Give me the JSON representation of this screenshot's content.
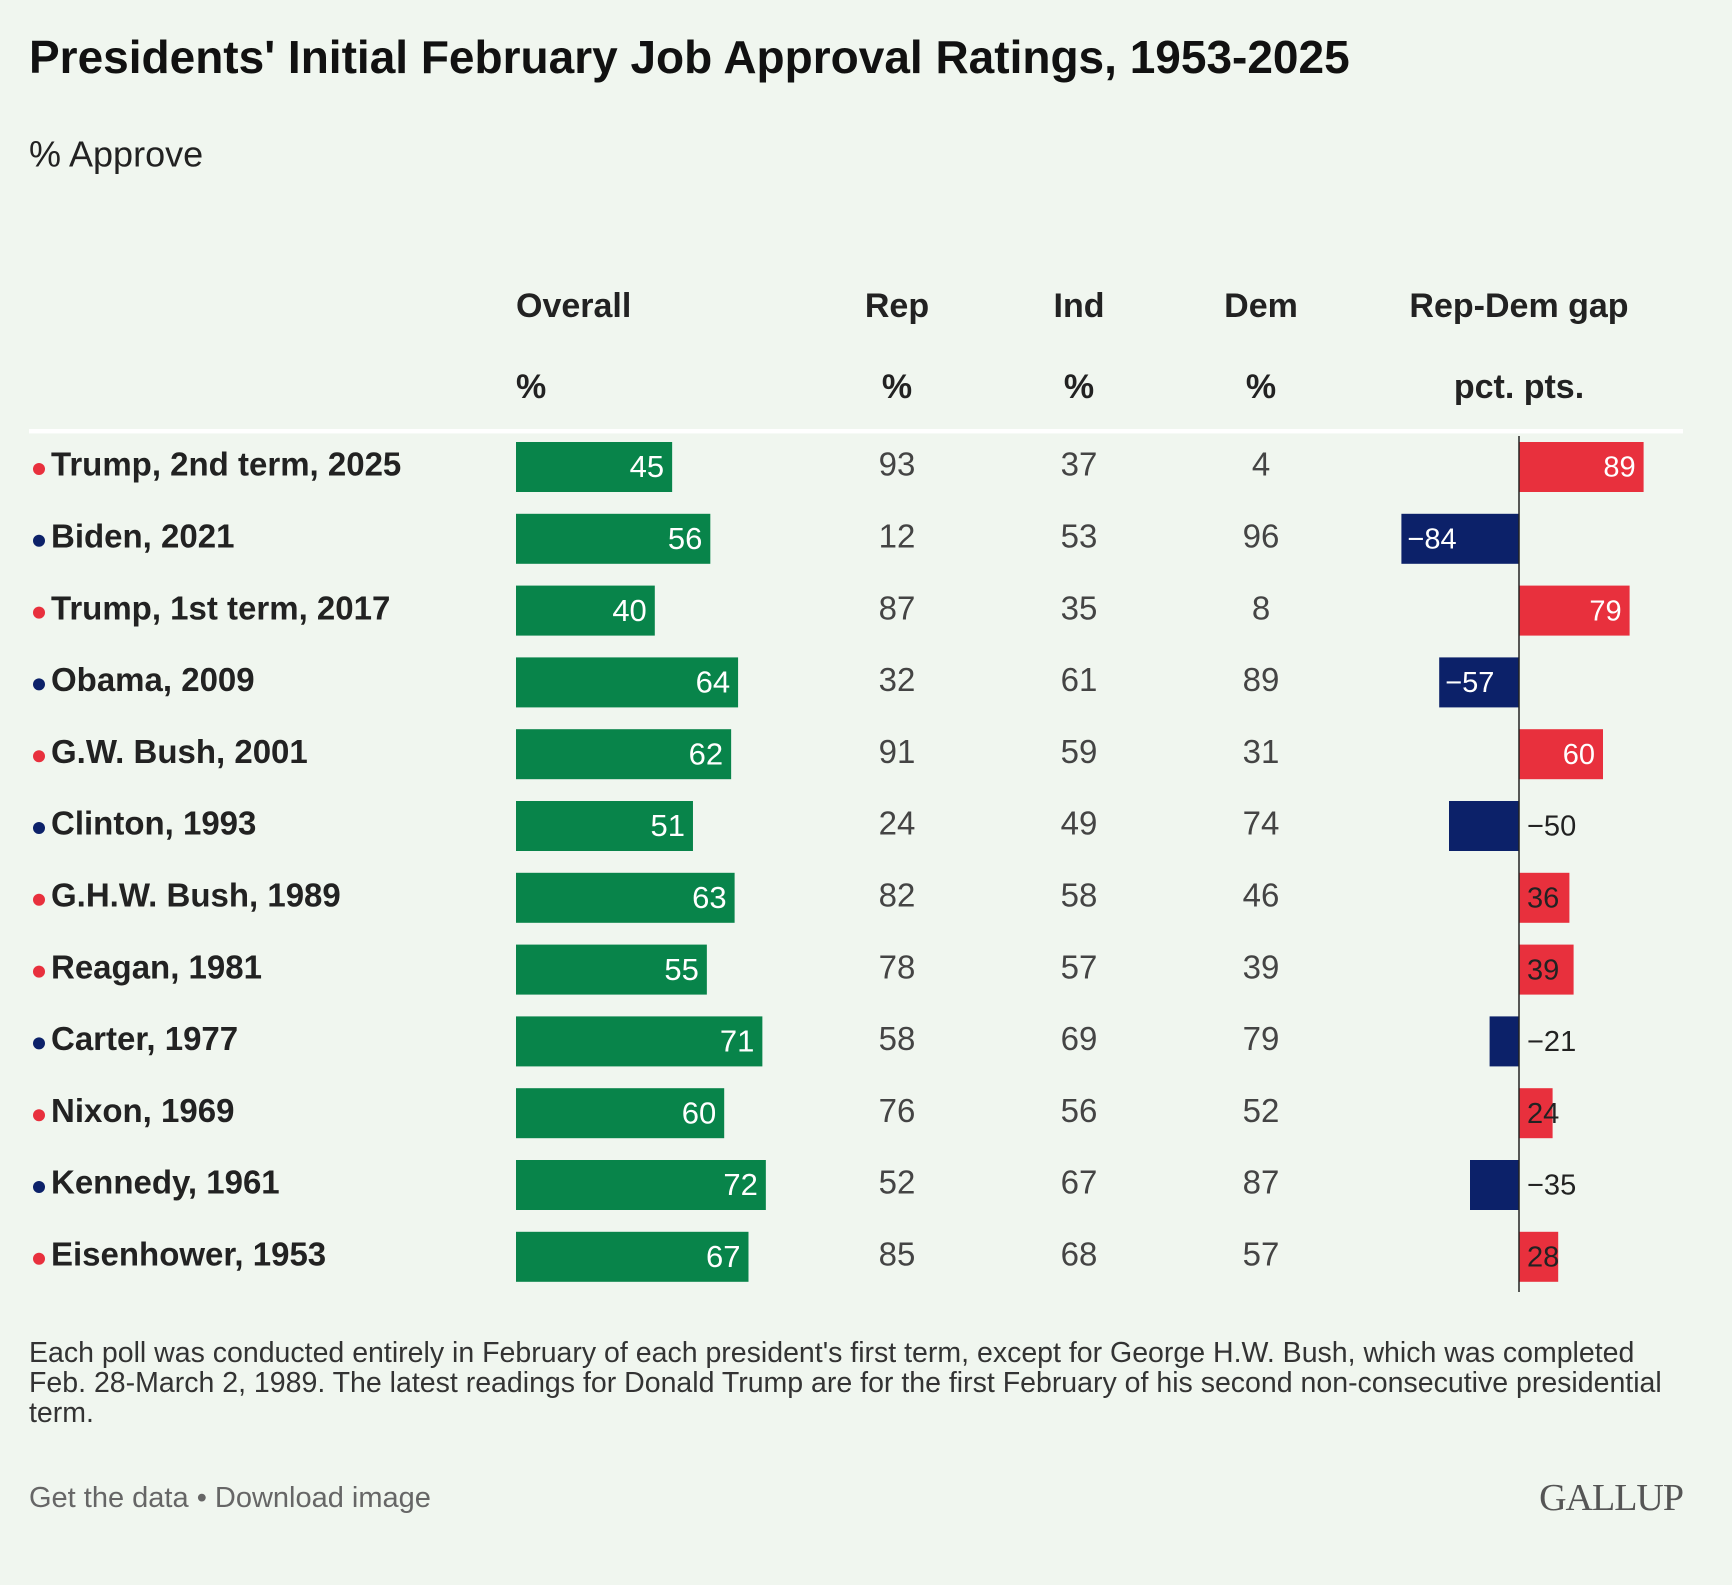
{
  "title": "Presidents' Initial February Job Approval Ratings, 1953-2025",
  "subtitle": "% Approve",
  "table": {
    "columns": [
      {
        "name": "Overall",
        "unit": "%"
      },
      {
        "name": "Rep",
        "unit": "%"
      },
      {
        "name": "Ind",
        "unit": "%"
      },
      {
        "name": "Dem",
        "unit": "%"
      },
      {
        "name": "Rep-Dem gap",
        "unit": "pct. pts."
      }
    ],
    "rows": [
      {
        "label": "Trump, 2nd term, 2025",
        "dot_color": "#e8303d",
        "overall": 45,
        "rep": 93,
        "ind": 37,
        "dem": 4,
        "gap": 89
      },
      {
        "label": "Biden, 2021",
        "dot_color": "#0c2169",
        "overall": 56,
        "rep": 12,
        "ind": 53,
        "dem": 96,
        "gap": -84,
        "gap_label": "−84"
      },
      {
        "label": "Trump, 1st term, 2017",
        "dot_color": "#e8303d",
        "overall": 40,
        "rep": 87,
        "ind": 35,
        "dem": 8,
        "gap": 79
      },
      {
        "label": "Obama, 2009",
        "dot_color": "#0c2169",
        "overall": 64,
        "rep": 32,
        "ind": 61,
        "dem": 89,
        "gap": -57,
        "gap_label": "−57"
      },
      {
        "label": "G.W. Bush, 2001",
        "dot_color": "#e8303d",
        "overall": 62,
        "rep": 91,
        "ind": 59,
        "dem": 31,
        "gap": 60
      },
      {
        "label": "Clinton, 1993",
        "dot_color": "#0c2169",
        "overall": 51,
        "rep": 24,
        "ind": 49,
        "dem": 74,
        "gap": -50,
        "gap_label": "−50"
      },
      {
        "label": "G.H.W. Bush, 1989",
        "dot_color": "#e8303d",
        "overall": 63,
        "rep": 82,
        "ind": 58,
        "dem": 46,
        "gap": 36
      },
      {
        "label": "Reagan, 1981",
        "dot_color": "#e8303d",
        "overall": 55,
        "rep": 78,
        "ind": 57,
        "dem": 39,
        "gap": 39
      },
      {
        "label": "Carter, 1977",
        "dot_color": "#0c2169",
        "overall": 71,
        "rep": 58,
        "ind": 69,
        "dem": 79,
        "gap": -21,
        "gap_label": "−21"
      },
      {
        "label": "Nixon, 1969",
        "dot_color": "#e8303d",
        "overall": 60,
        "rep": 76,
        "ind": 56,
        "dem": 52,
        "gap": 24
      },
      {
        "label": "Kennedy, 1961",
        "dot_color": "#0c2169",
        "overall": 72,
        "rep": 52,
        "ind": 67,
        "dem": 87,
        "gap": -35,
        "gap_label": "−35"
      },
      {
        "label": "Eisenhower, 1953",
        "dot_color": "#e8303d",
        "overall": 67,
        "rep": 85,
        "ind": 68,
        "dem": 57,
        "gap": 28
      }
    ]
  },
  "colors": {
    "overall": "#08844a",
    "positive": "#e8303d",
    "negative": "#0c2169"
  },
  "note": "Each poll was conducted entirely in February of each president's first term, except for George H.W. Bush, which was completed Feb. 28-March 2, 1989. The latest readings for Donald Trump are for the first February of his second non-consecutive presidential term.",
  "links": [
    "Get the data",
    "Download image"
  ],
  "link_separator": "•",
  "logo": "GALLUP"
}
